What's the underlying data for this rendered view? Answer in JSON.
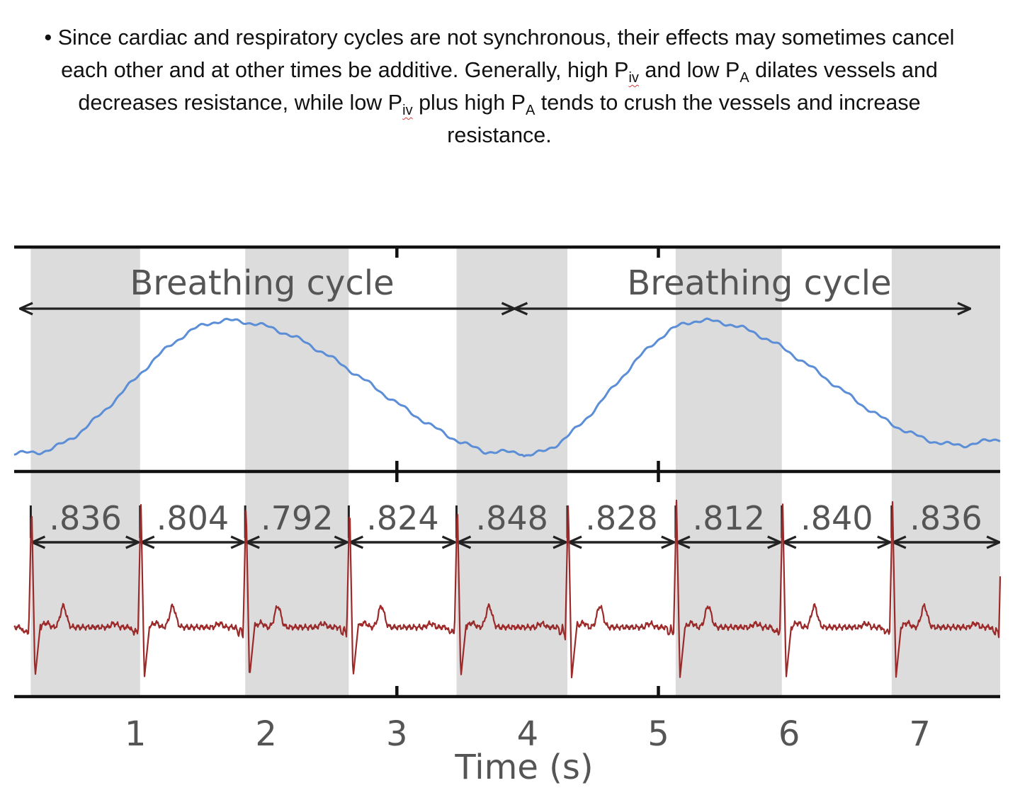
{
  "caption": {
    "bullet": "•",
    "part1": "Since cardiac and respiratory cycles are not synchronous, their effects may sometimes cancel each other and at other times be additive. Generally, high ",
    "p": "P",
    "iv": "iv",
    "A": "A",
    "part2": " and low ",
    "part3": " dilates vessels and decreases resistance, while low ",
    "part4": " plus high ",
    "part5": " tends to crush the vessels and increase resistance."
  },
  "chart_data": {
    "type": "line",
    "xlabel": "Time (s)",
    "xticks": [
      1,
      2,
      3,
      4,
      5,
      6,
      7
    ],
    "breathing_cycles": [
      "Breathing cycle",
      "Breathing cycle"
    ],
    "rr_intervals": [
      ".836",
      ".804",
      ".792",
      ".824",
      ".848",
      ".828",
      ".812",
      ".840",
      ".836"
    ],
    "series": [
      {
        "color": "#5b8ed6"
      },
      {
        "color": "#9b2a2a"
      }
    ],
    "colors": {
      "shade": "#dcdcdc",
      "frame": "#111111",
      "arrow": "#222222"
    }
  }
}
